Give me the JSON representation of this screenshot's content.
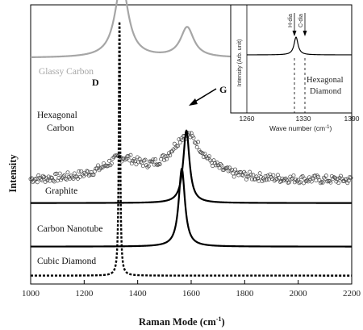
{
  "chart_data": [
    {
      "type": "line",
      "xlabel": "Raman Mode (cm",
      "xlabel_sup": "-1",
      "xlabel_close": ")",
      "ylabel": "Intensity",
      "xlim": [
        1000,
        2200
      ],
      "xticks": [
        "1000",
        "1200",
        "1400",
        "1600",
        "1800",
        "2000",
        "2200"
      ],
      "xtick_values": [
        1000,
        1200,
        1400,
        1600,
        1800,
        2000,
        2200
      ],
      "annotations": {
        "D": "D",
        "G": "G"
      },
      "colors": {
        "glassy": "#a6a6a6",
        "main": "#000000"
      },
      "series": [
        {
          "name": "Glassy Carbon",
          "style": "solid-gray",
          "baseline": 0.81,
          "peaks": [
            {
              "x": 1340,
              "height": 0.93,
              "width": 30
            },
            {
              "x": 1585,
              "height": 0.37,
              "width": 30
            }
          ]
        },
        {
          "name": "Hexagonal Carbon",
          "style": "open-circles",
          "baseline": 0.37,
          "peaks": [
            {
              "x": 1340,
              "height": 0.28,
              "width": 85
            },
            {
              "x": 1585,
              "height": 0.63,
              "width": 75
            }
          ]
        },
        {
          "name": "Graphite",
          "style": "solid-black",
          "baseline": 0.29,
          "peaks": [
            {
              "x": 1582,
              "height": 1.0,
              "width": 14
            }
          ]
        },
        {
          "name": "Carbon Nanotube",
          "style": "solid-black",
          "baseline": 0.134,
          "peaks": [
            {
              "x": 1565,
              "height": 1.0,
              "width": 14
            }
          ]
        },
        {
          "name": "Cubic Diamond",
          "style": "dashed-black",
          "baseline": 0.03,
          "peaks": [
            {
              "x": 1332,
              "height": 1.0,
              "width": 3
            }
          ]
        }
      ]
    },
    {
      "type": "line",
      "xlabel": "Wave number (cm",
      "xlabel_sup": "-1",
      "xlabel_close": ")",
      "ylabel": "Intensity (Arb. unit)",
      "xlim": [
        1260,
        1390
      ],
      "xticks": [
        "1260",
        "1330",
        "1390"
      ],
      "xtick_values": [
        1260,
        1330,
        1390
      ],
      "markers": [
        {
          "label": "H-dia",
          "x": 1319
        },
        {
          "label": "C-dia",
          "x": 1332
        }
      ],
      "text_label": [
        "Hexagonal",
        "Diamond"
      ],
      "series": [
        {
          "name": "Hexagonal Diamond",
          "peaks": [
            {
              "x": 1321,
              "width": 3
            }
          ]
        }
      ]
    }
  ]
}
